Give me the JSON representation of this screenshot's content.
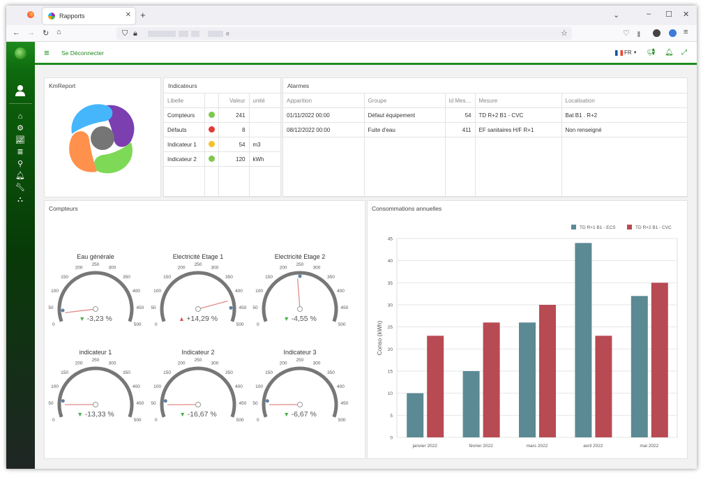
{
  "browser": {
    "tab_title": "Rapports",
    "tab_close": "✕",
    "new_tab": "+",
    "url_suffix": "e"
  },
  "nav": {
    "logout": "Se Déconnecter",
    "lang": "FR"
  },
  "logo_panel": {
    "title": "KmReport"
  },
  "indicators": {
    "title": "Indicateurs",
    "headers": [
      "Libelle",
      "",
      "Valeur",
      "unité"
    ],
    "rows": [
      {
        "label": "Compteurs",
        "color": "#7ec84a",
        "value": "241",
        "unit": ""
      },
      {
        "label": "Défauts",
        "color": "#e53935",
        "value": "8",
        "unit": ""
      },
      {
        "label": "Indicateur 1",
        "color": "#f5c02a",
        "value": "54",
        "unit": "m3"
      },
      {
        "label": "Indicateur 2",
        "color": "#7ec84a",
        "value": "120",
        "unit": "kWh"
      }
    ]
  },
  "alarms": {
    "title": "Alarmes",
    "headers": [
      "Apparition",
      "Groupe",
      "Id Mes…",
      "Mesure",
      "Localisation"
    ],
    "rows": [
      {
        "date": "01/11/2022 00:00",
        "group": "Défaut équipement",
        "id": "54",
        "measure": "TD R+2 B1 - CVC",
        "location": "Bat B1 . R+2"
      },
      {
        "date": "08/12/2022 00:00",
        "group": "Fuite d'eau",
        "id": "411",
        "measure": "EF sanitaires H/F R+1",
        "location": "Non renseigné"
      }
    ]
  },
  "counters": {
    "title": "Compteurs",
    "gauges": [
      {
        "title": "Eau générale",
        "value": 30,
        "change": "-3,23 %",
        "trend": "down",
        "marker": 40
      },
      {
        "title": "Electricité  Etage 1",
        "value": 420,
        "change": "+14,29 %",
        "trend": "up",
        "marker": 450
      },
      {
        "title": "Electricité  Etage 2",
        "value": 240,
        "change": "-4,55 %",
        "trend": "down",
        "marker": 250
      },
      {
        "title": "indicateur 1",
        "value": 45,
        "change": "-13,33 %",
        "trend": "down",
        "marker": 60
      },
      {
        "title": "Indicateur 2",
        "value": 45,
        "change": "-16,67 %",
        "trend": "down",
        "marker": 60
      },
      {
        "title": "Indicateur 3",
        "value": 45,
        "change": "-6,67 %",
        "trend": "down",
        "marker": 60
      }
    ],
    "tick_labels": [
      "0",
      "50",
      "100",
      "150",
      "200",
      "250",
      "300",
      "350",
      "400",
      "450",
      "500"
    ]
  },
  "chart_title": "Consommations annuelles",
  "chart_data": {
    "type": "bar",
    "categories": [
      "janvier 2022",
      "février 2022",
      "mars 2022",
      "avril 2022",
      "mai 2022"
    ],
    "series": [
      {
        "name": "TD R+1 B1 - ECS",
        "color": "#5b8a94",
        "values": [
          10,
          15,
          26,
          44,
          32
        ]
      },
      {
        "name": "TD R+2 B1 - CVC",
        "color": "#b84a54",
        "values": [
          23,
          26,
          30,
          23,
          35
        ]
      }
    ],
    "ylabel": "Conso (kWh)",
    "ylim": [
      0,
      45
    ],
    "yticks": [
      0,
      5,
      10,
      15,
      20,
      25,
      30,
      35,
      40,
      45
    ],
    "legend": "top-right",
    "grid": true
  }
}
